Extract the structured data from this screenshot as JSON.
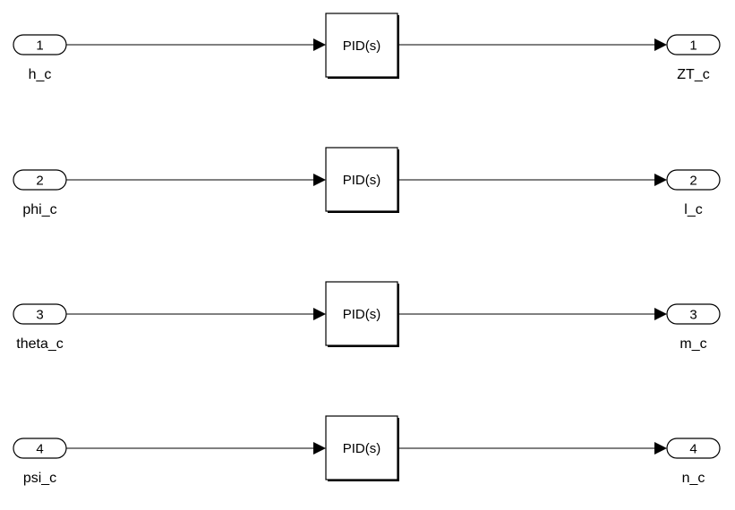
{
  "rows": [
    {
      "inport": {
        "number": "1",
        "name": "h_c"
      },
      "block": {
        "label": "PID(s)"
      },
      "outport": {
        "number": "1",
        "name": "ZT_c"
      }
    },
    {
      "inport": {
        "number": "2",
        "name": "phi_c"
      },
      "block": {
        "label": "PID(s)"
      },
      "outport": {
        "number": "2",
        "name": "l_c"
      }
    },
    {
      "inport": {
        "number": "3",
        "name": "theta_c"
      },
      "block": {
        "label": "PID(s)"
      },
      "outport": {
        "number": "3",
        "name": "m_c"
      }
    },
    {
      "inport": {
        "number": "4",
        "name": "psi_c"
      },
      "block": {
        "label": "PID(s)"
      },
      "outport": {
        "number": "4",
        "name": "n_c"
      }
    }
  ]
}
